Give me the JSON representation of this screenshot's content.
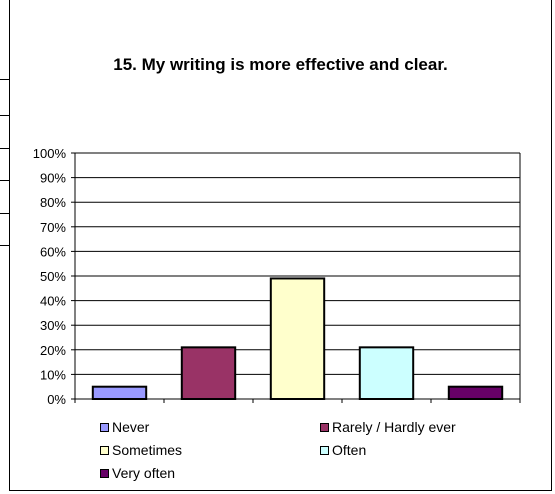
{
  "chart_data": {
    "type": "bar",
    "title": "15. My writing is more effective and clear.",
    "categories": [
      "Never",
      "Rarely / Hardly ever",
      "Sometimes",
      "Often",
      "Very often"
    ],
    "values": [
      5,
      21,
      49,
      21,
      5
    ],
    "colors": [
      "#9999ff",
      "#993366",
      "#ffffcc",
      "#ccffff",
      "#660066"
    ],
    "yticks": [
      "0%",
      "10%",
      "20%",
      "30%",
      "40%",
      "50%",
      "60%",
      "70%",
      "80%",
      "90%",
      "100%"
    ],
    "ylim": [
      0,
      100
    ],
    "grid": true,
    "legend_position": "bottom"
  }
}
